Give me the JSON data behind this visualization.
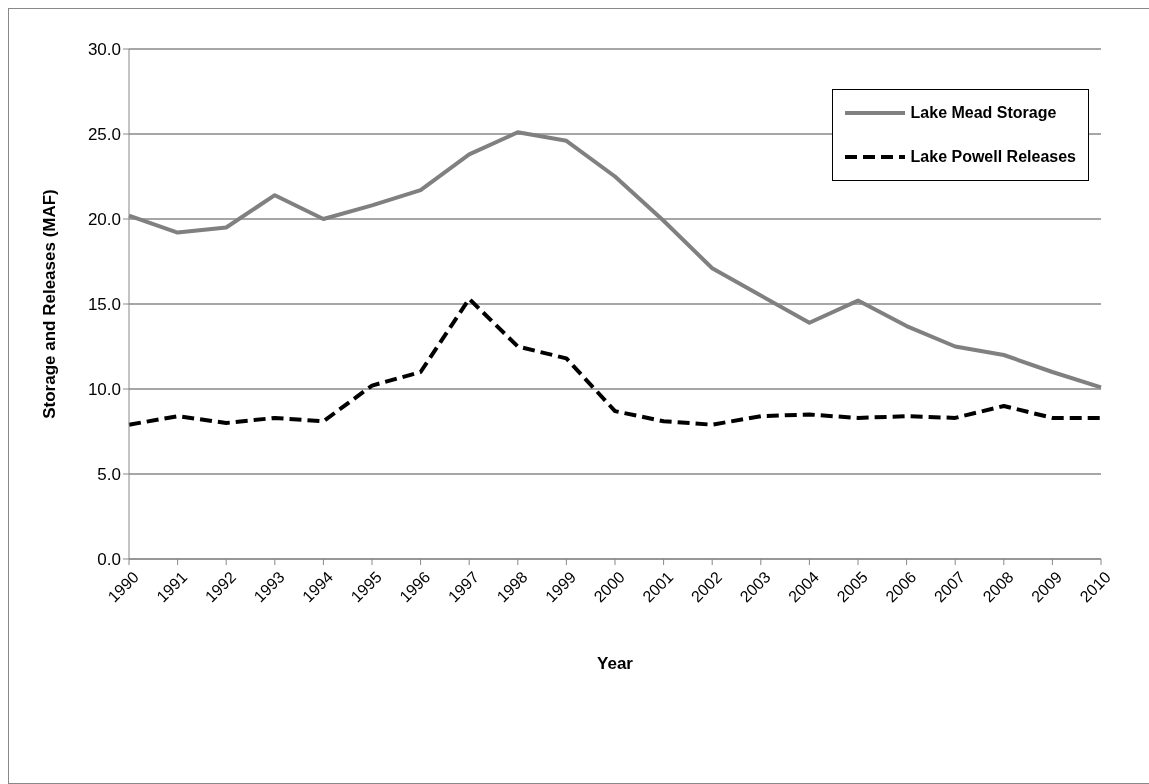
{
  "chart_data": {
    "type": "line",
    "xlabel": "Year",
    "ylabel": "Storage and Releases (MAF)",
    "categories": [
      "1990",
      "1991",
      "1992",
      "1993",
      "1994",
      "1995",
      "1996",
      "1997",
      "1998",
      "1999",
      "2000",
      "2001",
      "2002",
      "2003",
      "2004",
      "2005",
      "2006",
      "2007",
      "2008",
      "2009",
      "2010"
    ],
    "series": [
      {
        "name": "Lake Mead Storage",
        "color": "#808080",
        "line_style": "solid",
        "values": [
          20.2,
          19.2,
          19.5,
          21.4,
          20.0,
          20.8,
          21.7,
          23.8,
          25.1,
          24.6,
          22.5,
          19.9,
          17.1,
          15.5,
          13.9,
          15.2,
          13.7,
          12.5,
          12.0,
          11.0,
          10.1
        ]
      },
      {
        "name": "Lake Powell Releases",
        "color": "#000000",
        "line_style": "dashed",
        "values": [
          7.9,
          8.4,
          8.0,
          8.3,
          8.1,
          10.2,
          11.0,
          15.3,
          12.5,
          11.8,
          8.7,
          8.1,
          7.9,
          8.4,
          8.5,
          8.3,
          8.4,
          8.3,
          9.0,
          8.3,
          8.3
        ]
      }
    ],
    "ylim": [
      0,
      30
    ],
    "yticks": [
      {
        "value": 0,
        "label": "0.0"
      },
      {
        "value": 5,
        "label": "5.0"
      },
      {
        "value": 10,
        "label": "10.0"
      },
      {
        "value": 15,
        "label": "15.0"
      },
      {
        "value": 20,
        "label": "20.0"
      },
      {
        "value": 25,
        "label": "25.0"
      },
      {
        "value": 30,
        "label": "30.0"
      }
    ],
    "grid": "y",
    "legend": "top right",
    "marker": "none"
  }
}
